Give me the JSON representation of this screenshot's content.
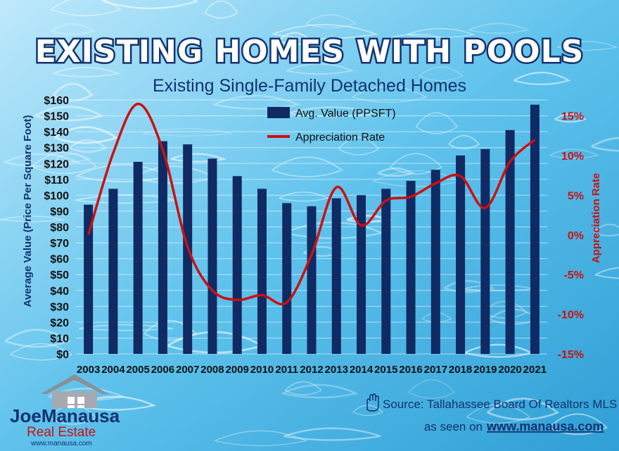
{
  "colors": {
    "bar": "#102a63",
    "line": "#cc1010",
    "title_fill": "#ffffff",
    "title_stroke": "#14326e",
    "subtitle": "#14326e",
    "left_axis_label": "#14326e",
    "right_axis_text": "#cc1010",
    "pool_light": "#bfe9fb",
    "pool_mid": "#5fc2ec",
    "pool_dark": "#2f9fd6"
  },
  "chart_data": {
    "type": "bar",
    "title": "Existing Homes With Pools",
    "subtitle": "Existing Single-Family Detached Homes",
    "categories": [
      "2003",
      "2004",
      "2005",
      "2006",
      "2007",
      "2008",
      "2009",
      "2010",
      "2011",
      "2012",
      "2013",
      "2014",
      "2015",
      "2016",
      "2017",
      "2018",
      "2019",
      "2020",
      "2021"
    ],
    "series": [
      {
        "name": "Avg. Value (PPSFT)",
        "type": "bar",
        "axis": "left",
        "values": [
          94,
          104,
          121,
          134,
          132,
          123,
          112,
          104,
          95,
          93,
          98,
          100,
          104,
          109,
          116,
          125,
          129,
          141,
          157
        ]
      },
      {
        "name": "Appreciation Rate",
        "type": "line",
        "axis": "right",
        "values": [
          0,
          10.3,
          16.5,
          10.7,
          -1.5,
          -7,
          -8.2,
          -7.6,
          -8.5,
          -2.5,
          6,
          1.2,
          4.3,
          4.8,
          6.5,
          7.4,
          3.4,
          9.2,
          12
        ]
      }
    ],
    "ylabel": "Average Value (Price Per Square Foot)",
    "ylim": [
      0,
      160
    ],
    "yticks": [
      0,
      10,
      20,
      30,
      40,
      50,
      60,
      70,
      80,
      90,
      100,
      110,
      120,
      130,
      140,
      150,
      160
    ],
    "ytick_labels": [
      "$0",
      "$10",
      "$20",
      "$30",
      "$40",
      "$50",
      "$60",
      "$70",
      "$80",
      "$90",
      "$100",
      "$110",
      "$120",
      "$130",
      "$140",
      "$150",
      "$160"
    ],
    "y2label": "Appreciation Rate",
    "y2lim": [
      -15,
      17
    ],
    "y2ticks": [
      -15,
      -10,
      -5,
      0,
      5,
      10,
      15
    ],
    "y2tick_labels": [
      "-15%",
      "-10%",
      "-5%",
      "0%",
      "5%",
      "10%",
      "15%"
    ],
    "grid": true,
    "legend": "top-center"
  },
  "source": {
    "icon": "hand-icon",
    "text": "Source: Tallahassee Board Of Realtors MLS",
    "seen_on": "as seen on",
    "url": "www.manausa.com"
  },
  "logo": {
    "name_first": "Joe",
    "name_last": "Manausa",
    "company": "Real Estate",
    "url": "www.manausa.com",
    "icon": "house-icon"
  }
}
